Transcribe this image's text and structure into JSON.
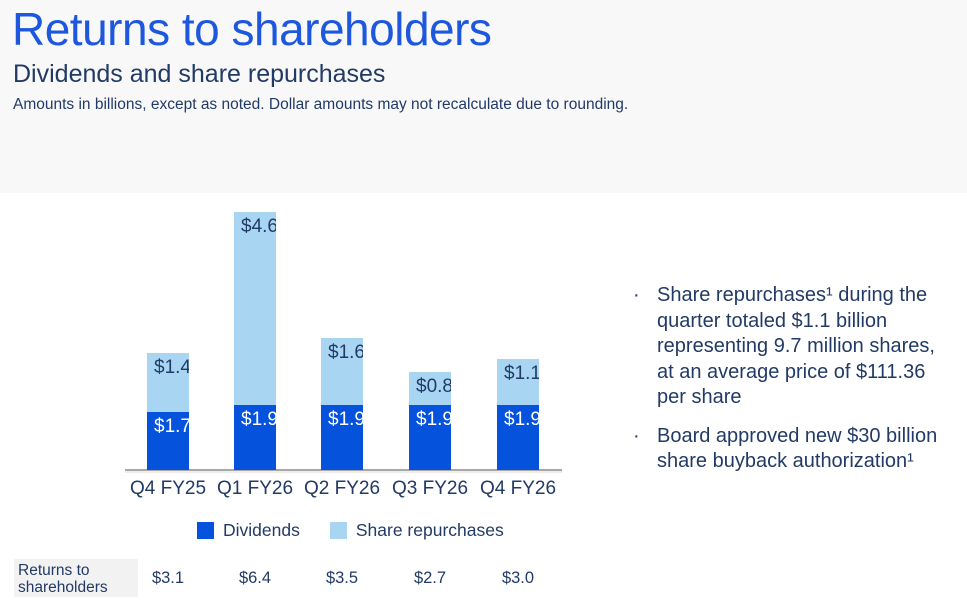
{
  "page": {
    "title": "Returns to shareholders",
    "subtitle": "Dividends and share repurchases",
    "note": "Amounts in billions, except as noted. Dollar amounts may not recalculate due to rounding."
  },
  "colors": {
    "title_blue": "#1c57de",
    "body_navy": "#223a66",
    "dividends_blue": "#0553dd",
    "repurchases_light_blue": "#a8d6f2",
    "axis_gray": "#a8a8a8",
    "header_band_gray": "#f8f8f8",
    "totals_label_bg": "#f2f2f2"
  },
  "chart_data": {
    "type": "bar",
    "stacked": true,
    "title": "",
    "xlabel": "",
    "ylabel": "",
    "grid": false,
    "value_axis_hidden": true,
    "legend_position": "bottom",
    "categories": [
      "Q4 FY25",
      "Q1 FY26",
      "Q2 FY26",
      "Q3 FY26",
      "Q4 FY26"
    ],
    "series": [
      {
        "name": "Dividends",
        "color": "#0553dd",
        "values": [
          1.7,
          1.9,
          1.9,
          1.9,
          1.9
        ],
        "labels": [
          "$1.7",
          "$1.9",
          "$1.9",
          "$1.9",
          "$1.9"
        ]
      },
      {
        "name": "Share repurchases",
        "color": "#a8d6f2",
        "values": [
          1.4,
          4.6,
          1.6,
          0.8,
          1.1
        ],
        "labels": [
          "$1.4",
          "$4.6",
          "$1.6",
          "$0.8",
          "$1.1"
        ]
      }
    ],
    "totals": {
      "label": "Returns to shareholders",
      "values": [
        "$3.1",
        "$6.4",
        "$3.5",
        "$2.7",
        "$3.0"
      ]
    }
  },
  "bullets": [
    "Share repurchases¹ during the quarter totaled $1.1 billion representing 9.7 million shares, at an average price of $111.36 per share",
    "Board approved new $30 billion share buyback authorization¹"
  ]
}
